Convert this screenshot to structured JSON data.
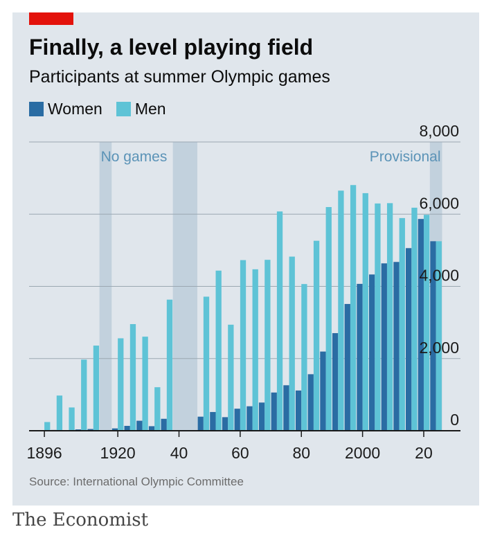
{
  "header": {
    "title": "Finally, a level playing field",
    "subtitle": "Participants at summer Olympic games"
  },
  "legend": {
    "women_label": "Women",
    "men_label": "Men"
  },
  "colors": {
    "women": "#2a6ca3",
    "men": "#5ec3d6",
    "no_games_band": "#c2d1dd",
    "gridline": "#9aa7b1",
    "annotation": "#5b93b7",
    "brand_bar": "#e3120b"
  },
  "source": "Source: International Olympic Committee",
  "brand": "The Economist",
  "chart_data": {
    "type": "bar",
    "stacked": false,
    "xlim": [
      1891,
      2032
    ],
    "ylim": [
      0,
      8000
    ],
    "y_ticks": [
      {
        "value": 0,
        "label": "0"
      },
      {
        "value": 2000,
        "label": "2,000"
      },
      {
        "value": 4000,
        "label": "4,000"
      },
      {
        "value": 6000,
        "label": "6,000"
      },
      {
        "value": 8000,
        "label": "8,000"
      }
    ],
    "x_ticks": [
      {
        "value": 1896,
        "label": "1896"
      },
      {
        "value": 1920,
        "label": "1920"
      },
      {
        "value": 1940,
        "label": "40"
      },
      {
        "value": 1960,
        "label": "60"
      },
      {
        "value": 1980,
        "label": "80"
      },
      {
        "value": 2000,
        "label": "2000"
      },
      {
        "value": 2020,
        "label": "20"
      }
    ],
    "grid": true,
    "legend_position": "top-left",
    "annotations": [
      {
        "text": "No games",
        "x": 1916,
        "x_range": [
          1914,
          1918
        ]
      },
      {
        "text": "",
        "x": 1942,
        "x_range": [
          1938,
          1946
        ]
      },
      {
        "text": "Provisional",
        "x": 2024,
        "x_range": [
          2022,
          2026
        ]
      }
    ],
    "series": [
      {
        "name": "Women",
        "x": [
          1896,
          1900,
          1904,
          1908,
          1912,
          1920,
          1924,
          1928,
          1932,
          1936,
          1948,
          1952,
          1956,
          1960,
          1964,
          1968,
          1972,
          1976,
          1980,
          1984,
          1988,
          1992,
          1996,
          2000,
          2004,
          2008,
          2012,
          2016,
          2020,
          2024
        ],
        "values": [
          0,
          22,
          6,
          37,
          48,
          65,
          135,
          277,
          126,
          331,
          390,
          519,
          376,
          611,
          678,
          781,
          1059,
          1260,
          1115,
          1566,
          2194,
          2704,
          3512,
          4069,
          4329,
          4637,
          4676,
          5059,
          5867,
          5250
        ]
      },
      {
        "name": "Men",
        "x": [
          1896,
          1900,
          1904,
          1908,
          1912,
          1920,
          1924,
          1928,
          1932,
          1936,
          1948,
          1952,
          1956,
          1960,
          1964,
          1968,
          1972,
          1976,
          1980,
          1984,
          1988,
          1992,
          1996,
          2000,
          2004,
          2008,
          2012,
          2016,
          2020,
          2024
        ],
        "values": [
          241,
          975,
          645,
          1971,
          2359,
          2561,
          2954,
          2606,
          1206,
          3632,
          3714,
          4436,
          2938,
          4727,
          4473,
          4735,
          6075,
          4824,
          4064,
          5263,
          6197,
          6652,
          6806,
          6582,
          6296,
          6305,
          5892,
          6179,
          5982,
          5250
        ]
      }
    ]
  }
}
